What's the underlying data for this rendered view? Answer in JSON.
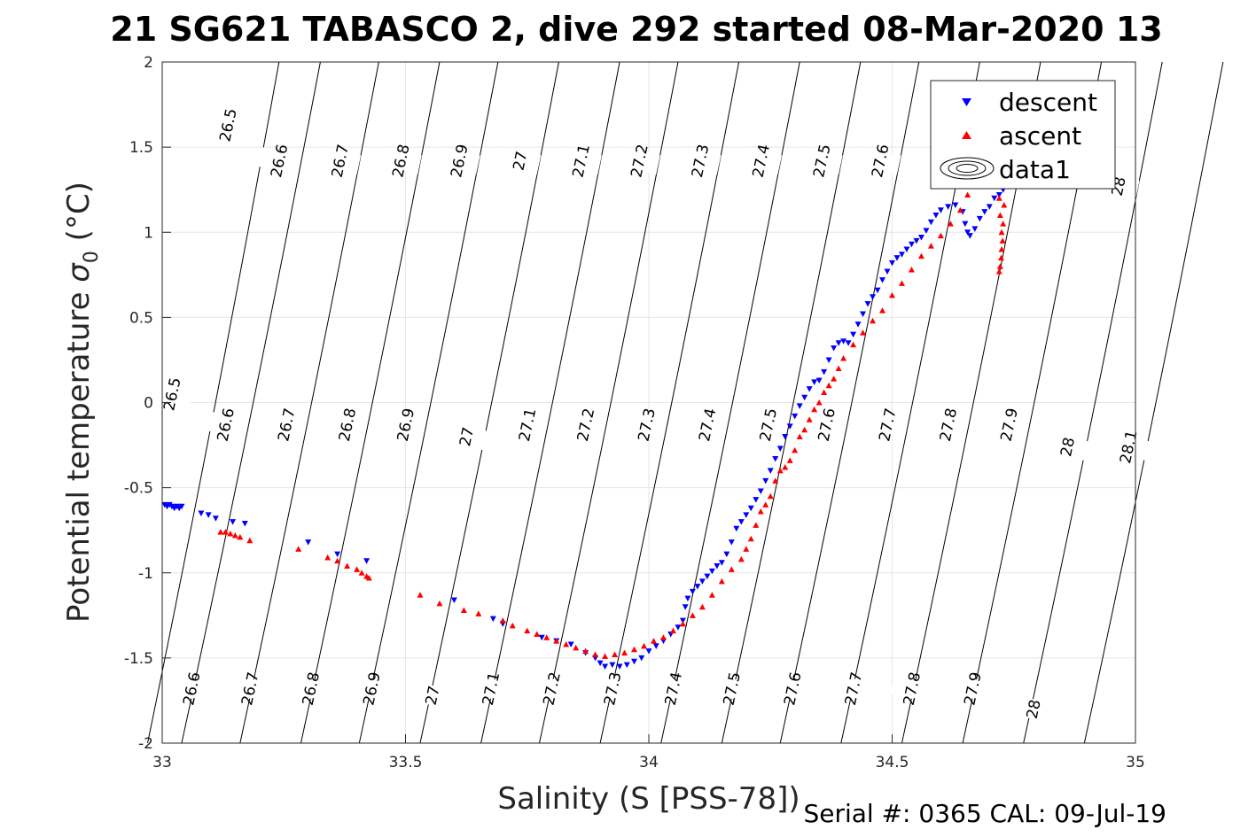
{
  "figure": {
    "title": "21 SG621 TABASCO 2, dive 292 started 08-Mar-2020 13",
    "footer": "Serial #: 0365  CAL: 09-Jul-19"
  },
  "chart_data": {
    "type": "scatter",
    "title": "21 SG621 TABASCO 2, dive 292 started 08-Mar-2020 13",
    "xlabel": "Salinity (S [PSS-78])",
    "ylabel": "Potential temperature σ₀ (°C)",
    "xlim": [
      33,
      35
    ],
    "ylim": [
      -2,
      2
    ],
    "xticks": [
      33,
      33.5,
      34,
      34.5,
      35
    ],
    "xtick_labels": [
      "33",
      "33.5",
      "34",
      "34.5",
      "35"
    ],
    "yticks": [
      -2,
      -1.5,
      -1,
      -0.5,
      0,
      0.5,
      1,
      1.5,
      2
    ],
    "ytick_labels": [
      "-2",
      "-1.5",
      "-1",
      "-0.5",
      "0",
      "0.5",
      "1",
      "1.5",
      "2"
    ],
    "grid": true,
    "legend_position": "top-right",
    "legend": [
      "descent",
      "ascent",
      "data1"
    ],
    "colors": {
      "descent": "#0000ff",
      "ascent": "#ff0000",
      "contour": "#000000",
      "grid": "#e6e6e6"
    },
    "series": [
      {
        "name": "descent",
        "marker": "triangle-down",
        "points": [
          [
            33.005,
            -0.6
          ],
          [
            33.01,
            -0.61
          ],
          [
            33.015,
            -0.6
          ],
          [
            33.02,
            -0.61
          ],
          [
            33.025,
            -0.62
          ],
          [
            33.03,
            -0.61
          ],
          [
            33.035,
            -0.62
          ],
          [
            33.04,
            -0.61
          ],
          [
            33.08,
            -0.65
          ],
          [
            33.095,
            -0.66
          ],
          [
            33.11,
            -0.68
          ],
          [
            33.145,
            -0.7
          ],
          [
            33.17,
            -0.71
          ],
          [
            33.3,
            -0.82
          ],
          [
            33.36,
            -0.89
          ],
          [
            33.42,
            -0.93
          ],
          [
            33.6,
            -1.16
          ],
          [
            33.68,
            -1.27
          ],
          [
            33.7,
            -1.3
          ],
          [
            33.78,
            -1.38
          ],
          [
            33.81,
            -1.4
          ],
          [
            33.84,
            -1.42
          ],
          [
            33.87,
            -1.47
          ],
          [
            33.89,
            -1.5
          ],
          [
            33.9,
            -1.53
          ],
          [
            33.91,
            -1.55
          ],
          [
            33.925,
            -1.54
          ],
          [
            33.94,
            -1.55
          ],
          [
            33.955,
            -1.54
          ],
          [
            33.97,
            -1.52
          ],
          [
            33.985,
            -1.5
          ],
          [
            34.0,
            -1.46
          ],
          [
            34.015,
            -1.43
          ],
          [
            34.03,
            -1.4
          ],
          [
            34.045,
            -1.36
          ],
          [
            34.06,
            -1.32
          ],
          [
            34.07,
            -1.28
          ],
          [
            34.075,
            -1.2
          ],
          [
            34.08,
            -1.15
          ],
          [
            34.09,
            -1.11
          ],
          [
            34.1,
            -1.08
          ],
          [
            34.11,
            -1.05
          ],
          [
            34.12,
            -1.02
          ],
          [
            34.13,
            -0.99
          ],
          [
            34.14,
            -0.96
          ],
          [
            34.15,
            -0.94
          ],
          [
            34.16,
            -0.89
          ],
          [
            34.17,
            -0.82
          ],
          [
            34.18,
            -0.74
          ],
          [
            34.19,
            -0.7
          ],
          [
            34.2,
            -0.66
          ],
          [
            34.21,
            -0.62
          ],
          [
            34.22,
            -0.57
          ],
          [
            34.23,
            -0.52
          ],
          [
            34.24,
            -0.46
          ],
          [
            34.25,
            -0.4
          ],
          [
            34.26,
            -0.33
          ],
          [
            34.27,
            -0.27
          ],
          [
            34.28,
            -0.2
          ],
          [
            34.29,
            -0.14
          ],
          [
            34.3,
            -0.08
          ],
          [
            34.31,
            -0.02
          ],
          [
            34.32,
            0.03
          ],
          [
            34.33,
            0.08
          ],
          [
            34.34,
            0.12
          ],
          [
            34.35,
            0.13
          ],
          [
            34.36,
            0.18
          ],
          [
            34.37,
            0.25
          ],
          [
            34.38,
            0.32
          ],
          [
            34.39,
            0.35
          ],
          [
            34.4,
            0.36
          ],
          [
            34.41,
            0.35
          ],
          [
            34.42,
            0.4
          ],
          [
            34.43,
            0.46
          ],
          [
            34.44,
            0.52
          ],
          [
            34.45,
            0.58
          ],
          [
            34.46,
            0.62
          ],
          [
            34.47,
            0.66
          ],
          [
            34.48,
            0.72
          ],
          [
            34.49,
            0.77
          ],
          [
            34.5,
            0.82
          ],
          [
            34.51,
            0.85
          ],
          [
            34.52,
            0.87
          ],
          [
            34.53,
            0.9
          ],
          [
            34.54,
            0.93
          ],
          [
            34.55,
            0.95
          ],
          [
            34.56,
            0.97
          ],
          [
            34.57,
            1.01
          ],
          [
            34.58,
            1.06
          ],
          [
            34.59,
            1.1
          ],
          [
            34.6,
            1.13
          ],
          [
            34.615,
            1.15
          ],
          [
            34.63,
            1.16
          ],
          [
            34.645,
            1.12
          ],
          [
            34.65,
            1.05
          ],
          [
            34.655,
            1.0
          ],
          [
            34.66,
            0.98
          ],
          [
            34.67,
            1.02
          ],
          [
            34.68,
            1.08
          ],
          [
            34.69,
            1.12
          ],
          [
            34.7,
            1.15
          ],
          [
            34.71,
            1.2
          ],
          [
            34.72,
            1.22
          ],
          [
            34.728,
            1.25
          ],
          [
            34.73,
            1.3
          ],
          [
            34.732,
            1.36
          ]
        ]
      },
      {
        "name": "ascent",
        "marker": "triangle-up",
        "points": [
          [
            33.12,
            -0.76
          ],
          [
            33.13,
            -0.76
          ],
          [
            33.14,
            -0.77
          ],
          [
            33.15,
            -0.78
          ],
          [
            33.16,
            -0.79
          ],
          [
            33.18,
            -0.81
          ],
          [
            33.28,
            -0.86
          ],
          [
            33.34,
            -0.91
          ],
          [
            33.36,
            -0.93
          ],
          [
            33.38,
            -0.96
          ],
          [
            33.4,
            -0.98
          ],
          [
            33.41,
            -1.0
          ],
          [
            33.42,
            -1.02
          ],
          [
            33.425,
            -1.03
          ],
          [
            33.53,
            -1.13
          ],
          [
            33.57,
            -1.18
          ],
          [
            33.62,
            -1.22
          ],
          [
            33.65,
            -1.24
          ],
          [
            33.7,
            -1.28
          ],
          [
            33.72,
            -1.31
          ],
          [
            33.75,
            -1.34
          ],
          [
            33.77,
            -1.36
          ],
          [
            33.79,
            -1.38
          ],
          [
            33.81,
            -1.4
          ],
          [
            33.83,
            -1.42
          ],
          [
            33.85,
            -1.44
          ],
          [
            33.87,
            -1.46
          ],
          [
            33.89,
            -1.48
          ],
          [
            33.91,
            -1.49
          ],
          [
            33.93,
            -1.48
          ],
          [
            33.95,
            -1.47
          ],
          [
            33.97,
            -1.45
          ],
          [
            33.99,
            -1.43
          ],
          [
            34.01,
            -1.4
          ],
          [
            34.03,
            -1.38
          ],
          [
            34.05,
            -1.34
          ],
          [
            34.07,
            -1.3
          ],
          [
            34.09,
            -1.25
          ],
          [
            34.11,
            -1.2
          ],
          [
            34.13,
            -1.13
          ],
          [
            34.15,
            -1.05
          ],
          [
            34.17,
            -0.98
          ],
          [
            34.19,
            -0.92
          ],
          [
            34.2,
            -0.86
          ],
          [
            34.21,
            -0.8
          ],
          [
            34.22,
            -0.72
          ],
          [
            34.23,
            -0.64
          ],
          [
            34.24,
            -0.6
          ],
          [
            34.25,
            -0.55
          ],
          [
            34.26,
            -0.46
          ],
          [
            34.27,
            -0.4
          ],
          [
            34.28,
            -0.38
          ],
          [
            34.29,
            -0.34
          ],
          [
            34.3,
            -0.28
          ],
          [
            34.31,
            -0.2
          ],
          [
            34.32,
            -0.16
          ],
          [
            34.33,
            -0.1
          ],
          [
            34.34,
            -0.04
          ],
          [
            34.35,
            0.0
          ],
          [
            34.36,
            0.06
          ],
          [
            34.37,
            0.1
          ],
          [
            34.38,
            0.14
          ],
          [
            34.39,
            0.2
          ],
          [
            34.4,
            0.26
          ],
          [
            34.42,
            0.34
          ],
          [
            34.44,
            0.41
          ],
          [
            34.46,
            0.48
          ],
          [
            34.48,
            0.54
          ],
          [
            34.5,
            0.63
          ],
          [
            34.52,
            0.7
          ],
          [
            34.54,
            0.78
          ],
          [
            34.56,
            0.86
          ],
          [
            34.58,
            0.92
          ],
          [
            34.6,
            0.98
          ],
          [
            34.62,
            1.05
          ],
          [
            34.64,
            1.13
          ],
          [
            34.655,
            1.22
          ],
          [
            34.665,
            1.29
          ],
          [
            34.72,
            1.2
          ],
          [
            34.722,
            1.1
          ],
          [
            34.725,
            1.0
          ],
          [
            34.725,
            0.9
          ],
          [
            34.724,
            0.85
          ],
          [
            34.722,
            0.8
          ],
          [
            34.72,
            0.77
          ],
          [
            34.73,
            1.16
          ],
          [
            34.728,
            1.05
          ],
          [
            34.727,
            0.95
          ]
        ]
      }
    ],
    "contour_lines": [
      {
        "sigma": 26.5,
        "start": [
          32.97,
          -2
        ],
        "end": [
          33.24,
          2
        ]
      },
      {
        "sigma": 26.6,
        "start": [
          33.04,
          -2
        ],
        "end": [
          33.325,
          2
        ]
      },
      {
        "sigma": 26.7,
        "start": [
          33.16,
          -2
        ],
        "end": [
          33.445,
          2
        ]
      },
      {
        "sigma": 26.8,
        "start": [
          33.285,
          -2
        ],
        "end": [
          33.57,
          2
        ]
      },
      {
        "sigma": 26.9,
        "start": [
          33.405,
          -2
        ],
        "end": [
          33.69,
          2
        ]
      },
      {
        "sigma": 27,
        "start": [
          33.53,
          -2
        ],
        "end": [
          33.815,
          2
        ]
      },
      {
        "sigma": 27.1,
        "start": [
          33.655,
          -2
        ],
        "end": [
          33.94,
          2
        ]
      },
      {
        "sigma": 27.2,
        "start": [
          33.775,
          -2
        ],
        "end": [
          34.06,
          2
        ]
      },
      {
        "sigma": 27.3,
        "start": [
          33.9,
          -2
        ],
        "end": [
          34.185,
          2
        ]
      },
      {
        "sigma": 27.4,
        "start": [
          34.025,
          -2
        ],
        "end": [
          34.31,
          2
        ]
      },
      {
        "sigma": 27.5,
        "start": [
          34.15,
          -2
        ],
        "end": [
          34.435,
          2
        ]
      },
      {
        "sigma": 27.6,
        "start": [
          34.27,
          -2
        ],
        "end": [
          34.555,
          2
        ]
      },
      {
        "sigma": 27.7,
        "start": [
          34.395,
          -2
        ],
        "end": [
          34.68,
          2
        ]
      },
      {
        "sigma": 27.8,
        "start": [
          34.52,
          -2
        ],
        "end": [
          34.805,
          2
        ]
      },
      {
        "sigma": 27.9,
        "start": [
          34.645,
          -2
        ],
        "end": [
          34.93,
          2
        ]
      },
      {
        "sigma": 28,
        "start": [
          34.77,
          -2
        ],
        "end": [
          35.055,
          2
        ]
      },
      {
        "sigma": 28.1,
        "start": [
          34.895,
          -2
        ],
        "end": [
          35.18,
          2
        ]
      }
    ],
    "contour_labels": [
      {
        "text": "26.5",
        "x": 33.135,
        "y": 1.63
      },
      {
        "text": "26.6",
        "x": 33.24,
        "y": 1.42
      },
      {
        "text": "26.7",
        "x": 33.365,
        "y": 1.42
      },
      {
        "text": "26.8",
        "x": 33.49,
        "y": 1.42
      },
      {
        "text": "26.9",
        "x": 33.61,
        "y": 1.42
      },
      {
        "text": "27",
        "x": 33.735,
        "y": 1.42
      },
      {
        "text": "27.1",
        "x": 33.86,
        "y": 1.42
      },
      {
        "text": "27.2",
        "x": 33.98,
        "y": 1.42
      },
      {
        "text": "27.3",
        "x": 34.105,
        "y": 1.42
      },
      {
        "text": "27.4",
        "x": 34.23,
        "y": 1.42
      },
      {
        "text": "27.5",
        "x": 34.355,
        "y": 1.42
      },
      {
        "text": "27.6",
        "x": 34.475,
        "y": 1.42
      },
      {
        "text": "28",
        "x": 34.965,
        "y": 1.27
      },
      {
        "text": "26.5",
        "x": 33.02,
        "y": 0.05
      },
      {
        "text": "26.6",
        "x": 33.13,
        "y": -0.13
      },
      {
        "text": "26.7",
        "x": 33.255,
        "y": -0.13
      },
      {
        "text": "26.8",
        "x": 33.38,
        "y": -0.13
      },
      {
        "text": "26.9",
        "x": 33.5,
        "y": -0.13
      },
      {
        "text": "27",
        "x": 33.625,
        "y": -0.2
      },
      {
        "text": "27.1",
        "x": 33.75,
        "y": -0.13
      },
      {
        "text": "27.2",
        "x": 33.87,
        "y": -0.13
      },
      {
        "text": "27.3",
        "x": 33.995,
        "y": -0.13
      },
      {
        "text": "27.4",
        "x": 34.12,
        "y": -0.13
      },
      {
        "text": "27.5",
        "x": 34.245,
        "y": -0.13
      },
      {
        "text": "27.6",
        "x": 34.365,
        "y": -0.13
      },
      {
        "text": "27.7",
        "x": 34.49,
        "y": -0.13
      },
      {
        "text": "27.8",
        "x": 34.615,
        "y": -0.13
      },
      {
        "text": "27.9",
        "x": 34.74,
        "y": -0.13
      },
      {
        "text": "28",
        "x": 34.86,
        "y": -0.26
      },
      {
        "text": "28.1",
        "x": 34.985,
        "y": -0.26
      },
      {
        "text": "26.6",
        "x": 33.06,
        "y": -1.68
      },
      {
        "text": "26.7",
        "x": 33.18,
        "y": -1.68
      },
      {
        "text": "26.8",
        "x": 33.305,
        "y": -1.68
      },
      {
        "text": "26.9",
        "x": 33.43,
        "y": -1.68
      },
      {
        "text": "27",
        "x": 33.555,
        "y": -1.72
      },
      {
        "text": "27.1",
        "x": 33.675,
        "y": -1.68
      },
      {
        "text": "27.2",
        "x": 33.8,
        "y": -1.68
      },
      {
        "text": "27.3",
        "x": 33.925,
        "y": -1.68
      },
      {
        "text": "27.4",
        "x": 34.05,
        "y": -1.68
      },
      {
        "text": "27.5",
        "x": 34.17,
        "y": -1.68
      },
      {
        "text": "27.6",
        "x": 34.295,
        "y": -1.68
      },
      {
        "text": "27.7",
        "x": 34.42,
        "y": -1.68
      },
      {
        "text": "27.8",
        "x": 34.54,
        "y": -1.68
      },
      {
        "text": "27.9",
        "x": 34.665,
        "y": -1.68
      },
      {
        "text": "28",
        "x": 34.79,
        "y": -1.8
      }
    ]
  }
}
